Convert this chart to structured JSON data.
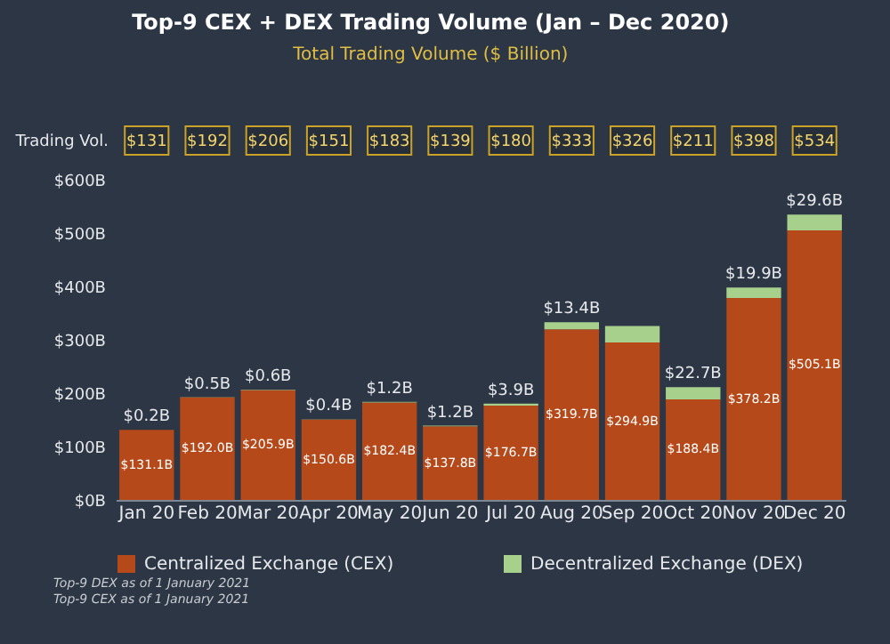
{
  "chart_data": {
    "type": "bar",
    "title": "Top-9 CEX + DEX Trading Volume (Jan – Dec 2020)",
    "subtitle": "Total Trading Volume ($ Billion)",
    "categories": [
      "Jan 20",
      "Feb 20",
      "Mar 20",
      "Apr 20",
      "May 20",
      "Jun 20",
      "Jul 20",
      "Aug 20",
      "Sep 20",
      "Oct 20",
      "Nov 20",
      "Dec 20"
    ],
    "stacked": true,
    "series": [
      {
        "name": "Centralized Exchange (CEX)",
        "color": "#b5491a",
        "values": [
          131.1,
          192.0,
          205.9,
          150.6,
          182.4,
          137.8,
          176.7,
          319.7,
          294.9,
          188.4,
          378.2,
          505.1
        ],
        "value_labels": [
          "$131.1B",
          "$192.0B",
          "$205.9B",
          "$150.6B",
          "$182.4B",
          "$137.8B",
          "$176.7B",
          "$319.7B",
          "$294.9B",
          "$188.4B",
          "$378.2B",
          "$505.1B"
        ]
      },
      {
        "name": "Decentralized Exchange (DEX)",
        "color": "#a8d08d",
        "values": [
          0.2,
          0.5,
          0.6,
          0.4,
          1.2,
          1.2,
          3.9,
          13.4,
          31,
          22.7,
          19.9,
          29.6
        ],
        "value_labels": [
          "$0.2B",
          "$0.5B",
          "$0.6B",
          "$0.4B",
          "$1.2B",
          "$1.2B",
          "$3.9B",
          "$13.4B",
          null,
          "$22.7B",
          "$19.9B",
          "$29.6B"
        ]
      }
    ],
    "ylim": [
      0,
      600
    ],
    "yticks": [
      {
        "value": 0,
        "label": "$0B"
      },
      {
        "value": 100,
        "label": "$100B"
      },
      {
        "value": 200,
        "label": "$200B"
      },
      {
        "value": 300,
        "label": "$300B"
      },
      {
        "value": 400,
        "label": "$400B"
      },
      {
        "value": 500,
        "label": "$500B"
      },
      {
        "value": 600,
        "label": "$600B"
      }
    ],
    "grid": false,
    "legend": "bottom",
    "annotations": [
      "Trading Vol.",
      "$131",
      "$192",
      "$206",
      "$151",
      "$183",
      "$139",
      "$180",
      "$333",
      "$326",
      "$211",
      "$398",
      "$534",
      "Top-9 DEX as of 1 January 2021",
      "Top-9 CEX as of 1 January 2021"
    ]
  }
}
